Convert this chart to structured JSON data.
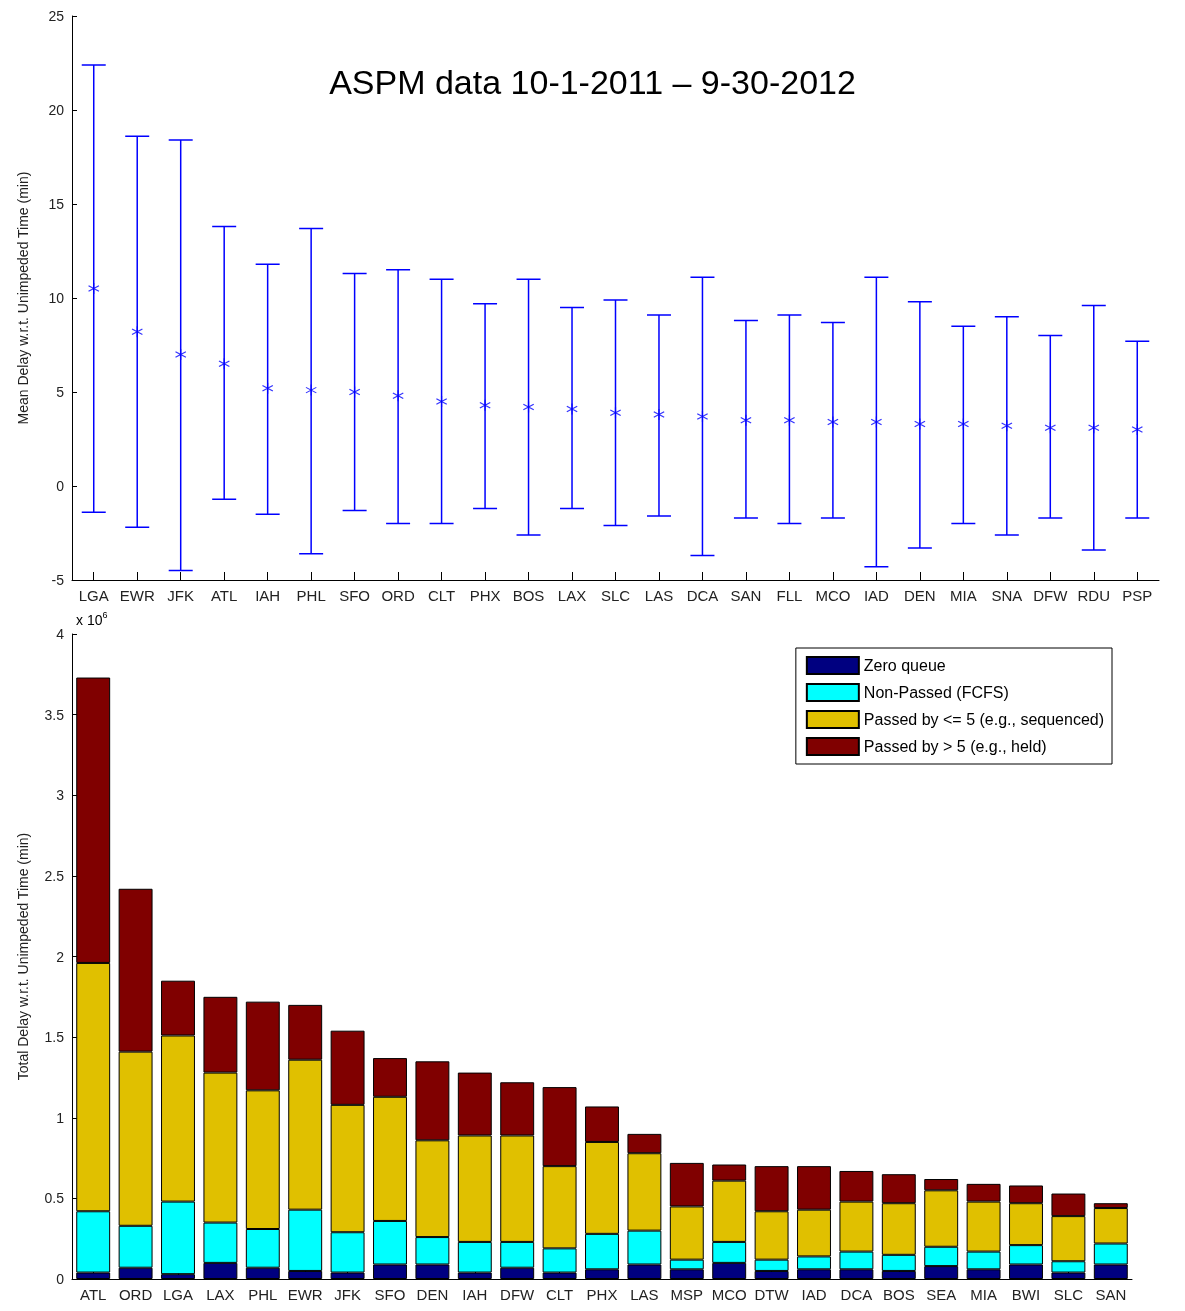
{
  "chart_data": [
    {
      "type": "scatter",
      "title": "ASPM data 10-1-2011 – 9-30-2012",
      "ylabel": "Mean Delay w.r.t. Unimpeded Time (min)",
      "categories": [
        "LGA",
        "EWR",
        "JFK",
        "ATL",
        "IAH",
        "PHL",
        "SFO",
        "ORD",
        "CLT",
        "PHX",
        "BOS",
        "LAX",
        "SLC",
        "LAS",
        "DCA",
        "SAN",
        "FLL",
        "MCO",
        "IAD",
        "DEN",
        "MIA",
        "SNA",
        "DFW",
        "RDU",
        "PSP"
      ],
      "values": [
        10.5,
        8.2,
        7.0,
        6.5,
        5.2,
        5.1,
        5.0,
        4.8,
        4.5,
        4.3,
        4.2,
        4.1,
        3.9,
        3.8,
        3.7,
        3.5,
        3.5,
        3.4,
        3.4,
        3.3,
        3.3,
        3.2,
        3.1,
        3.1,
        3.0
      ],
      "errors": [
        [
          -1.4,
          22.4
        ],
        [
          -2.2,
          18.6
        ],
        [
          -4.5,
          18.4
        ],
        [
          -0.7,
          13.8
        ],
        [
          -1.5,
          11.8
        ],
        [
          -3.6,
          13.7
        ],
        [
          -1.3,
          11.3
        ],
        [
          -2.0,
          11.5
        ],
        [
          -2.0,
          11.0
        ],
        [
          -1.2,
          9.7
        ],
        [
          -2.6,
          11.0
        ],
        [
          -1.2,
          9.5
        ],
        [
          -2.1,
          9.9
        ],
        [
          -1.6,
          9.1
        ],
        [
          -3.7,
          11.1
        ],
        [
          -1.7,
          8.8
        ],
        [
          -2.0,
          9.1
        ],
        [
          -1.7,
          8.7
        ],
        [
          -4.3,
          11.1
        ],
        [
          -3.3,
          9.8
        ],
        [
          -2.0,
          8.5
        ],
        [
          -2.6,
          9.0
        ],
        [
          -1.7,
          8.0
        ],
        [
          -3.4,
          9.6
        ],
        [
          -1.7,
          7.7
        ]
      ],
      "color": "#0000ff",
      "marker": "cross",
      "ylim": [
        -5,
        25
      ],
      "yticks": [
        -5,
        0,
        5,
        10,
        15,
        20,
        25
      ]
    },
    {
      "type": "bar",
      "stacked": true,
      "ylabel": "Total Delay w.r.t. Unimpeded Time (min)",
      "annotations": [
        "x 10$^{6}$"
      ],
      "categories": [
        "ATL",
        "ORD",
        "LGA",
        "LAX",
        "PHL",
        "EWR",
        "JFK",
        "SFO",
        "DEN",
        "IAH",
        "DFW",
        "CLT",
        "PHX",
        "LAS",
        "MSP",
        "MCO",
        "DTW",
        "IAD",
        "DCA",
        "BOS",
        "SEA",
        "MIA",
        "BWI",
        "SLC",
        "SAN"
      ],
      "series": [
        {
          "name": "Zero queue",
          "color": "#000080",
          "values": [
            0.04,
            0.07,
            0.03,
            0.1,
            0.07,
            0.05,
            0.04,
            0.09,
            0.09,
            0.04,
            0.07,
            0.04,
            0.06,
            0.09,
            0.06,
            0.1,
            0.05,
            0.06,
            0.06,
            0.05,
            0.08,
            0.06,
            0.09,
            0.04,
            0.09
          ]
        },
        {
          "name": "Non-Passed (FCFS)",
          "color": "#00ffff",
          "values": [
            0.38,
            0.26,
            0.45,
            0.25,
            0.24,
            0.38,
            0.25,
            0.27,
            0.17,
            0.19,
            0.16,
            0.15,
            0.22,
            0.21,
            0.06,
            0.13,
            0.07,
            0.08,
            0.11,
            0.1,
            0.12,
            0.11,
            0.12,
            0.07,
            0.13
          ]
        },
        {
          "name": "Passed by <= 5 (e.g., sequenced)",
          "color": "#e0c000",
          "values": [
            1.54,
            1.08,
            1.03,
            0.93,
            0.86,
            0.93,
            0.79,
            0.77,
            0.6,
            0.66,
            0.66,
            0.51,
            0.57,
            0.48,
            0.33,
            0.38,
            0.3,
            0.29,
            0.31,
            0.32,
            0.35,
            0.31,
            0.26,
            0.28,
            0.22
          ]
        },
        {
          "name": "Passed by > 5 (e.g., held)",
          "color": "#800000",
          "values": [
            1.77,
            1.01,
            0.34,
            0.47,
            0.55,
            0.34,
            0.46,
            0.24,
            0.49,
            0.39,
            0.33,
            0.49,
            0.22,
            0.12,
            0.27,
            0.1,
            0.28,
            0.27,
            0.19,
            0.18,
            0.07,
            0.11,
            0.11,
            0.14,
            0.03
          ]
        }
      ],
      "ylim": [
        0,
        4
      ],
      "yticks": [
        0,
        0.5,
        1,
        1.5,
        2,
        2.5,
        3,
        3.5,
        4
      ],
      "legend": "top right"
    }
  ]
}
